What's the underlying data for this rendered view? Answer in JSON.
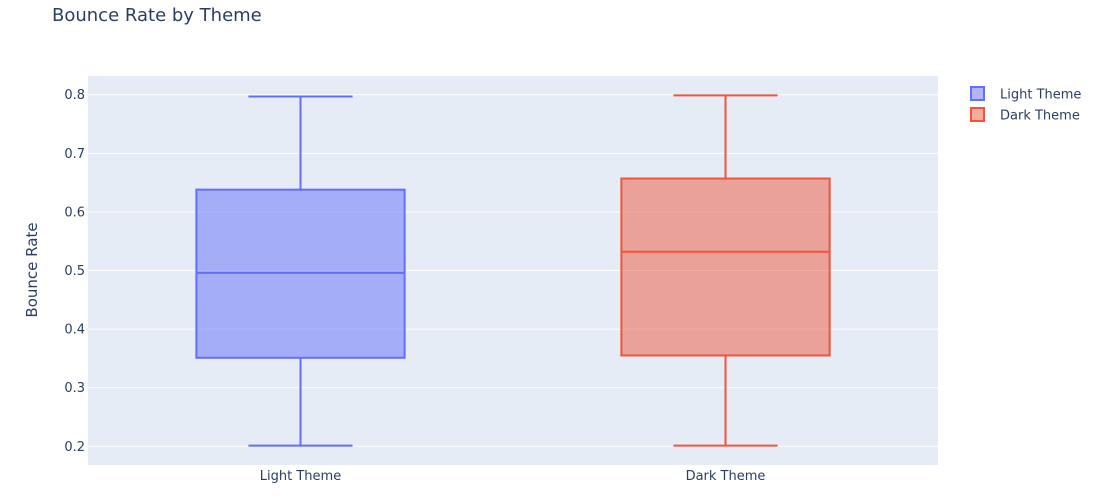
{
  "chart_data": {
    "type": "box",
    "title": "Bounce Rate by Theme",
    "xlabel": "",
    "ylabel": "Bounce Rate",
    "ylim": [
      0.168,
      0.832
    ],
    "yticks": [
      0.2,
      0.3,
      0.4,
      0.5,
      0.6,
      0.7,
      0.8
    ],
    "ytick_labels": [
      "0.2",
      "0.3",
      "0.4",
      "0.5",
      "0.6",
      "0.7",
      "0.8"
    ],
    "categories": [
      "Light Theme",
      "Dark Theme"
    ],
    "series": [
      {
        "name": "Light Theme",
        "category": "Light Theme",
        "min": 0.201,
        "q1": 0.351,
        "median": 0.496,
        "q3": 0.638,
        "max": 0.797,
        "color": "#636efa",
        "fill": "rgba(99,110,250,0.5)"
      },
      {
        "name": "Dark Theme",
        "category": "Dark Theme",
        "min": 0.201,
        "q1": 0.355,
        "median": 0.532,
        "q3": 0.657,
        "max": 0.799,
        "color": "#ef553b",
        "fill": "rgba(239,85,59,0.5)"
      }
    ],
    "legend": {
      "position": "top-right"
    },
    "grid": true,
    "colors": {
      "plot_bg": "#e5ecf6",
      "grid": "#ffffff",
      "text": "#2a3f5f"
    }
  }
}
